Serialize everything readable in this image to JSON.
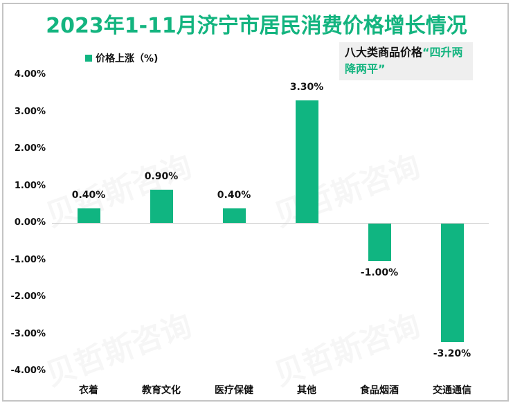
{
  "title": "2023年1-11月济宁市居民消费价格增长情况",
  "legend": {
    "label": "价格上涨（%)"
  },
  "callout": {
    "text_black": "八大类商品价格",
    "text_green": "“四升两降两平”"
  },
  "colors": {
    "bar": "#10b581",
    "title": "#13b47f",
    "callout_bg": "#efefef"
  },
  "y_ticks": [
    "4.00%",
    "3.00%",
    "2.00%",
    "1.00%",
    "0.00%",
    "-1.00%",
    "-2.00%",
    "-3.00%",
    "-4.00%"
  ],
  "watermark": "贝哲斯咨询",
  "chart_data": {
    "type": "bar",
    "title": "2023年1-11月济宁市居民消费价格增长情况",
    "categories": [
      "衣着",
      "教育文化",
      "医疗保健",
      "其他",
      "食品烟酒",
      "交通通信"
    ],
    "series": [
      {
        "name": "价格上涨（%)",
        "values": [
          0.4,
          0.9,
          0.4,
          3.3,
          -1.0,
          -3.2
        ]
      }
    ],
    "data_labels": [
      "0.40%",
      "0.90%",
      "0.40%",
      "3.30%",
      "-1.00%",
      "-3.20%"
    ],
    "xlabel": "",
    "ylabel": "",
    "ylim": [
      -4.0,
      4.0
    ],
    "y_tick_format": "percent_2dp",
    "grid": false,
    "legend_position": "top-left",
    "annotation": "八大类商品价格“四升两降两平”"
  }
}
